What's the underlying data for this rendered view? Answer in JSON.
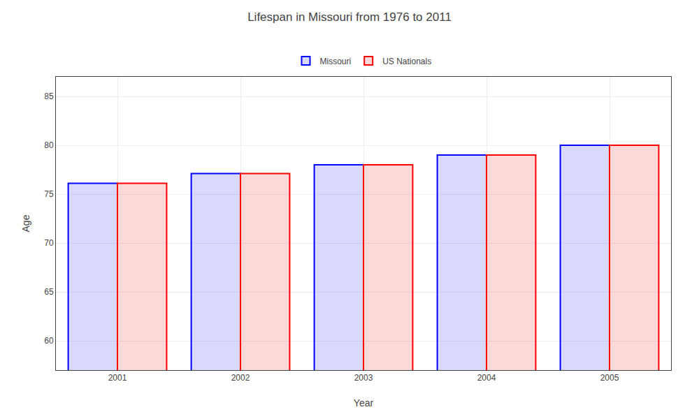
{
  "chart_data": {
    "type": "bar",
    "title": "Lifespan in Missouri from 1976 to 2011",
    "x_label": "Year",
    "y_label": "Age",
    "categories": [
      "2001",
      "2002",
      "2003",
      "2004",
      "2005"
    ],
    "series": [
      {
        "name": "Missouri",
        "color": "#0000ff",
        "values": [
          76.1,
          77.1,
          78.0,
          79.0,
          80.0
        ]
      },
      {
        "name": "US Nationals",
        "color": "#ff0000",
        "values": [
          76.1,
          77.1,
          78.0,
          79.0,
          80.0
        ]
      }
    ],
    "ylim": [
      57,
      87
    ],
    "yticks": [
      60,
      65,
      70,
      75,
      80,
      85
    ],
    "grid": true,
    "legend": "top"
  }
}
